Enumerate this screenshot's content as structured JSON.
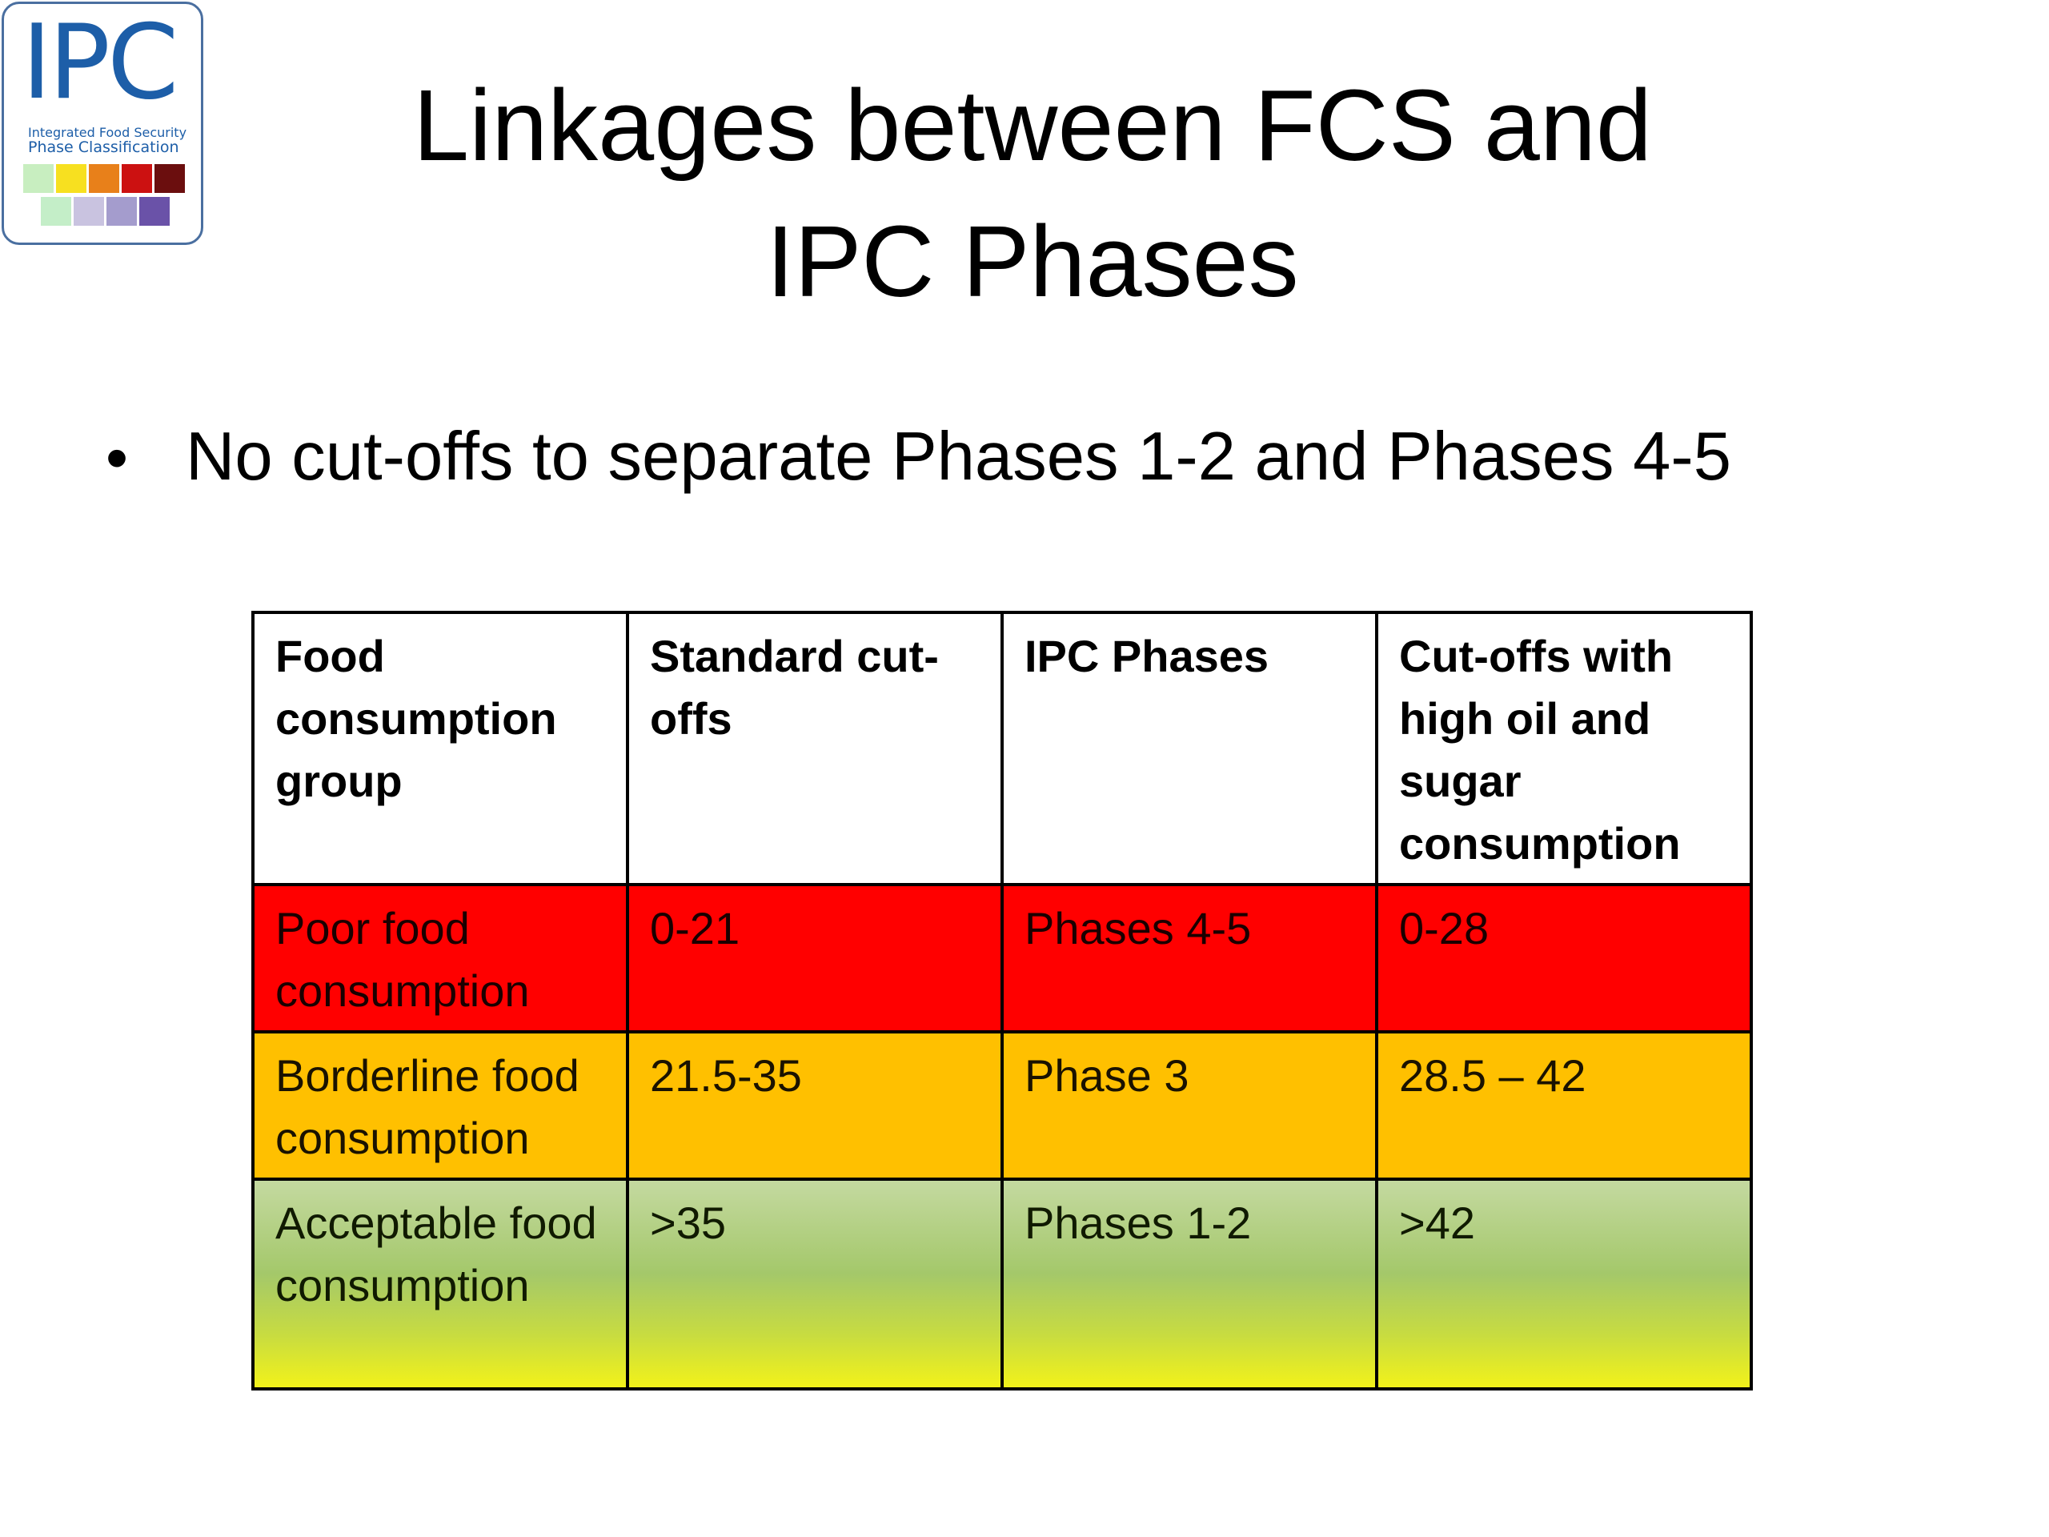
{
  "logo": {
    "mark": "IPC",
    "subtitle_line1": "Integrated Food Security",
    "subtitle_line2": "Phase Classification",
    "swatch_colors_row1": [
      "#c8eec0",
      "#f7e020",
      "#e8801a",
      "#cc1111",
      "#6b0e0e"
    ],
    "swatch_colors_row2": [
      "#c4eec8",
      "#c9c3e0",
      "#a49ccd",
      "#6a52a8"
    ]
  },
  "slide": {
    "title_line1": "Linkages between FCS and",
    "title_line2": "IPC Phases",
    "bullet_symbol": "•",
    "bullet_text": "No cut-offs to separate Phases 1-2 and Phases 4-5"
  },
  "table": {
    "headers": [
      "Food consumption group",
      "Standard cut-offs",
      "IPC Phases",
      "Cut-offs with high oil and sugar consumption"
    ],
    "rows": [
      [
        "Poor food consumption",
        "0-21",
        "Phases 4-5",
        "0-28"
      ],
      [
        "Borderline food consumption",
        "21.5-35",
        "Phase 3",
        "28.5 – 42"
      ],
      [
        "Acceptable food consumption",
        ">35",
        "Phases 1-2",
        ">42"
      ]
    ],
    "row_colors": [
      "#ff0000",
      "#ffc000",
      "#a4c86a"
    ]
  }
}
